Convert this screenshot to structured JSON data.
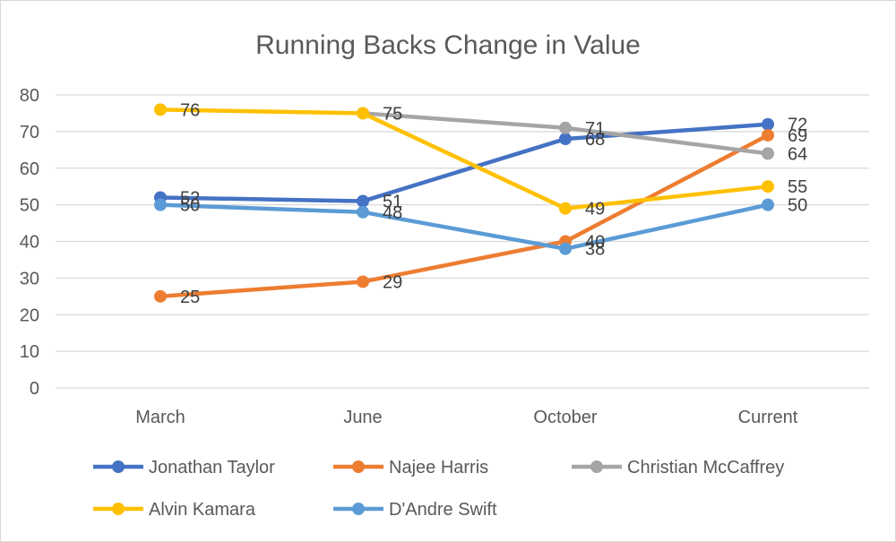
{
  "chart_data": {
    "type": "line",
    "title": "Running Backs Change in Value",
    "xlabel": "",
    "ylabel": "",
    "categories": [
      "March",
      "June",
      "October",
      "Current"
    ],
    "ylim": [
      0,
      80
    ],
    "yticks": [
      0,
      10,
      20,
      30,
      40,
      50,
      60,
      70,
      80
    ],
    "grid": true,
    "legend_position": "bottom",
    "data_labels": true,
    "series": [
      {
        "name": "Jonathan Taylor",
        "color": "#4472C4",
        "values": [
          52,
          51,
          68,
          72
        ],
        "labels": [
          52,
          51,
          68,
          72
        ]
      },
      {
        "name": "Najee Harris",
        "color": "#ED7D31",
        "values": [
          25,
          29,
          40,
          69
        ],
        "labels": [
          25,
          29,
          40,
          69
        ]
      },
      {
        "name": "Christian McCaffrey",
        "color": "#A5A5A5",
        "values": [
          null,
          75,
          71,
          64
        ],
        "labels": [
          null,
          75,
          71,
          64
        ]
      },
      {
        "name": "Alvin Kamara",
        "color": "#FFC000",
        "values": [
          76,
          75,
          49,
          55
        ],
        "labels": [
          76,
          75,
          49,
          55
        ]
      },
      {
        "name": "D'Andre Swift",
        "color": "#5B9BD5",
        "values": [
          50,
          48,
          38,
          50
        ],
        "labels": [
          50,
          48,
          38,
          50
        ]
      }
    ]
  }
}
